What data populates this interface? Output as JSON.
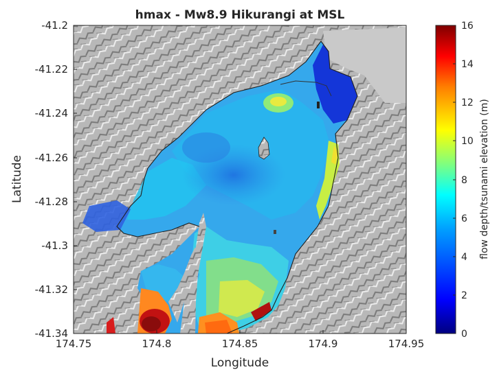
{
  "title": "hmax - Mw8.9 Hikurangi at MSL",
  "xaxis": {
    "label": "Longitude",
    "ticks": [
      "174.75",
      "174.8",
      "174.85",
      "174.9",
      "174.95"
    ],
    "values": [
      174.75,
      174.8,
      174.85,
      174.9,
      174.95
    ],
    "range": [
      174.75,
      174.95
    ]
  },
  "yaxis": {
    "label": "Latitude",
    "ticks": [
      "-41.2",
      "-41.22",
      "-41.24",
      "-41.26",
      "-41.28",
      "-41.3",
      "-41.32",
      "-41.34"
    ],
    "values": [
      -41.2,
      -41.22,
      -41.24,
      -41.26,
      -41.28,
      -41.3,
      -41.32,
      -41.34
    ],
    "range": [
      -41.34,
      -41.2
    ]
  },
  "colorbar": {
    "label": "flow depth/tsunami elevation (m)",
    "ticks": [
      "0",
      "2",
      "4",
      "6",
      "8",
      "10",
      "12",
      "14",
      "16"
    ],
    "values": [
      0,
      2,
      4,
      6,
      8,
      10,
      12,
      14,
      16
    ],
    "range": [
      0,
      16
    ],
    "colormap": "jet"
  },
  "colors": {
    "hillshade": "#b4b4b4",
    "land_dark": "#6e6e6e",
    "harbour_typical": "#2f9dea",
    "hotspot": "#b01010"
  }
}
